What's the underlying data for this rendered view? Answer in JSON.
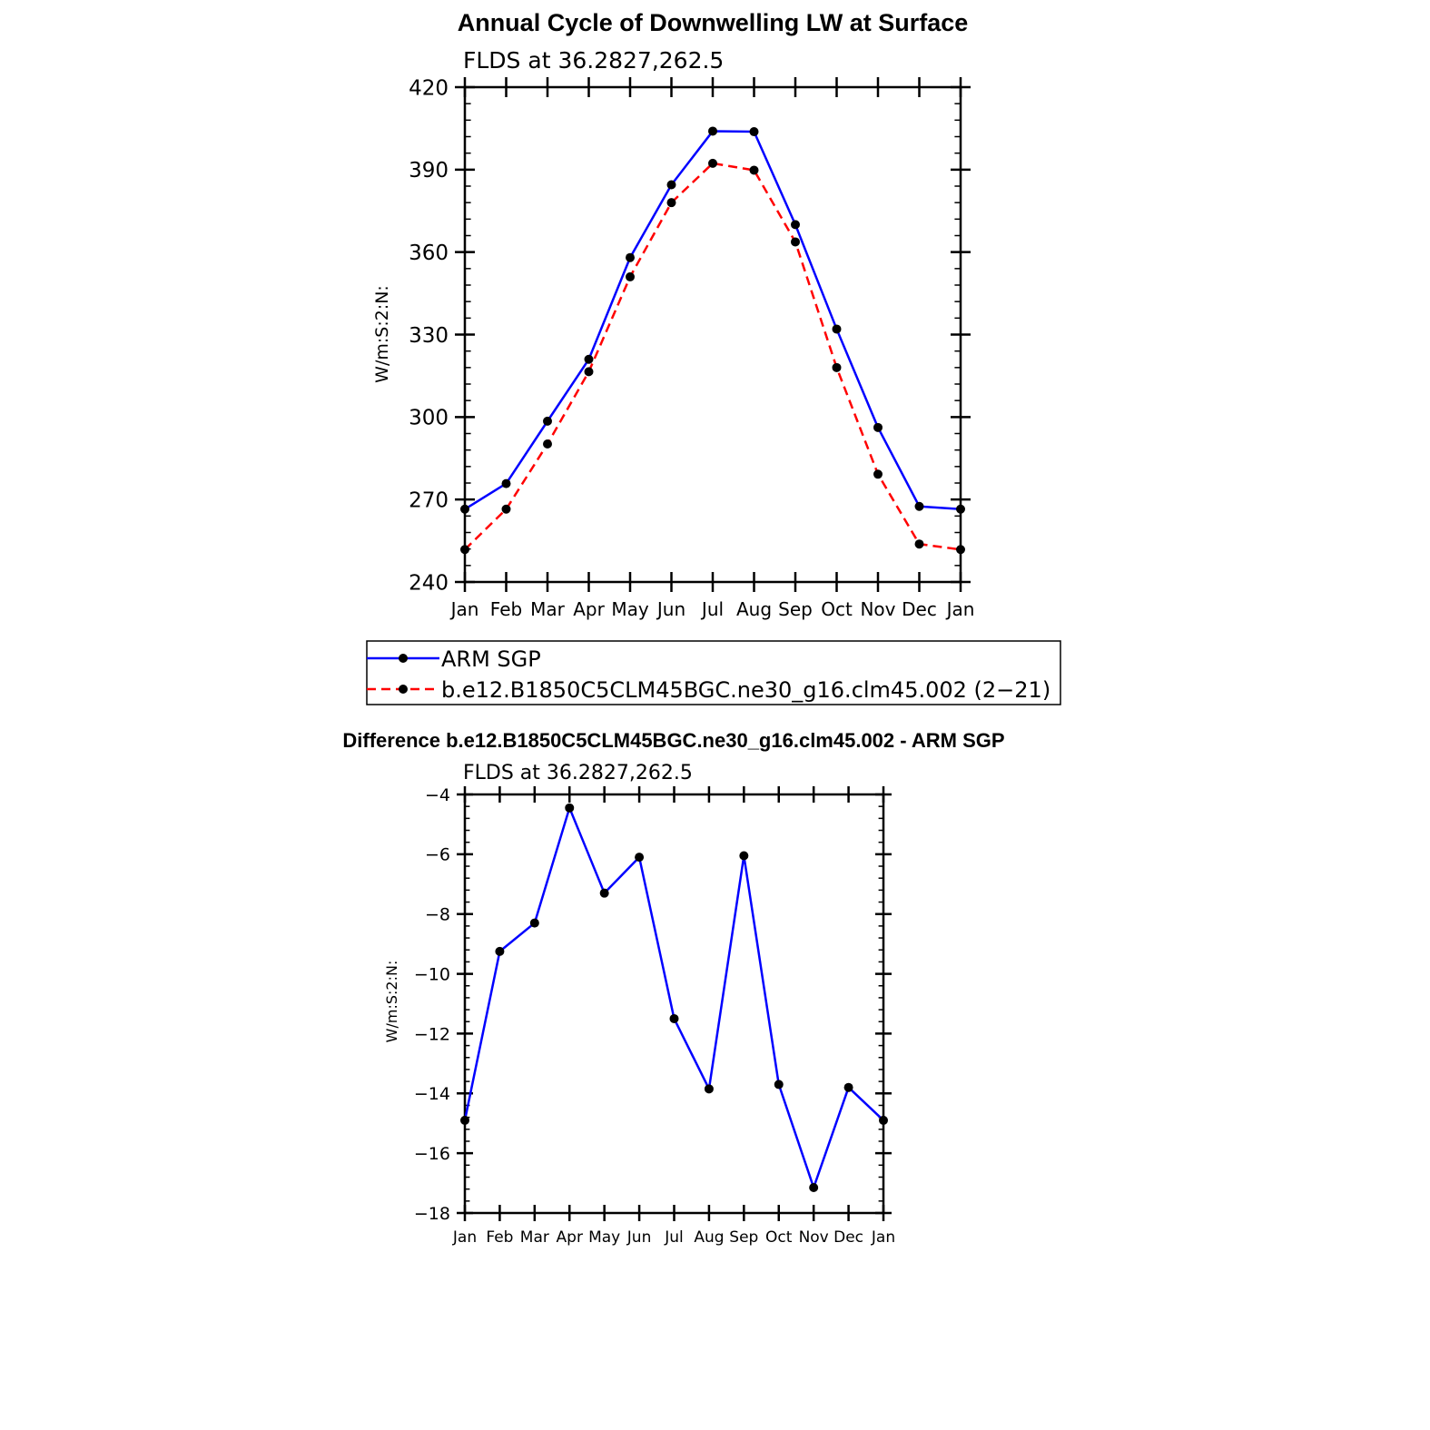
{
  "chart_data": [
    {
      "type": "line",
      "title": "Annual Cycle of Downwelling LW at Surface",
      "subtitle": "FLDS at 36.2827,262.5",
      "ylabel": "W/m:S:2:N:",
      "xlabel": "",
      "categories": [
        "Jan",
        "Feb",
        "Mar",
        "Apr",
        "May",
        "Jun",
        "Jul",
        "Aug",
        "Sep",
        "Oct",
        "Nov",
        "Dec",
        "Jan"
      ],
      "ylim": [
        240,
        420
      ],
      "yticks": [
        "420",
        "390",
        "360",
        "330",
        "300",
        "270",
        "240"
      ],
      "series": [
        {
          "name": "ARM SGP",
          "color": "#0000ff",
          "dashed": false,
          "values": [
            266.5,
            275.8,
            298.5,
            321,
            358,
            384.5,
            404,
            403.8,
            370,
            332,
            296.2,
            267.5,
            266.5
          ]
        },
        {
          "name": "b.e12.B1850C5CLM45BGC.ne30_g16.clm45.002 (2−21)",
          "color": "#ff0000",
          "dashed": true,
          "values": [
            251.8,
            266.5,
            290.2,
            316.5,
            351,
            378,
            392.3,
            389.8,
            363.7,
            318,
            279.2,
            253.8,
            251.8
          ]
        }
      ],
      "legend": "below",
      "grid": false
    },
    {
      "type": "line",
      "title": "Difference b.e12.B1850C5CLM45BGC.ne30_g16.clm45.002 - ARM SGP",
      "subtitle": "FLDS at 36.2827,262.5",
      "ylabel": "W/m:S:2:N:",
      "xlabel": "",
      "categories": [
        "Jan",
        "Feb",
        "Mar",
        "Apr",
        "May",
        "Jun",
        "Jul",
        "Aug",
        "Sep",
        "Oct",
        "Nov",
        "Dec",
        "Jan"
      ],
      "ylim": [
        -18,
        -4
      ],
      "yticks": [
        "−4",
        "−6",
        "−8",
        "−10",
        "−12",
        "−14",
        "−16",
        "−18"
      ],
      "series": [
        {
          "color": "#0000ff",
          "dashed": false,
          "values": [
            -14.9,
            -9.25,
            -8.3,
            -4.45,
            -7.3,
            -6.1,
            -11.5,
            -13.85,
            -6.05,
            -13.7,
            -17.15,
            -13.8,
            -14.9
          ]
        }
      ],
      "grid": false
    }
  ]
}
